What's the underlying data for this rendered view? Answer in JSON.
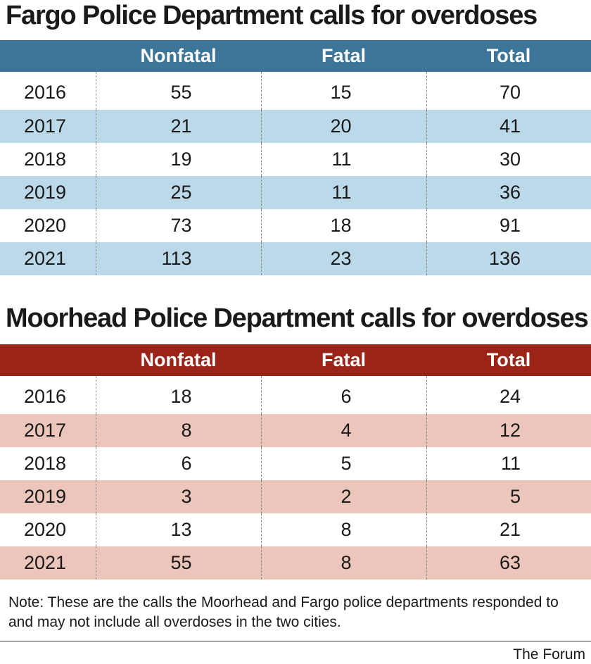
{
  "chart_data": [
    {
      "type": "table",
      "title": "Fargo Police Department calls for overdoses",
      "columns": [
        "",
        "Nonfatal",
        "Fatal",
        "Total"
      ],
      "rows": [
        [
          "2016",
          "55",
          "15",
          "70"
        ],
        [
          "2017",
          "21",
          "20",
          "41"
        ],
        [
          "2018",
          "19",
          "11",
          "30"
        ],
        [
          "2019",
          "25",
          "11",
          "36"
        ],
        [
          "2020",
          "73",
          "18",
          "91"
        ],
        [
          "2021",
          "113",
          "23",
          "136"
        ]
      ],
      "header_color": "#3c7598",
      "stripe_color": "#bcd9ea"
    },
    {
      "type": "table",
      "title": "Moorhead Police Department calls for overdoses",
      "columns": [
        "",
        "Nonfatal",
        "Fatal",
        "Total"
      ],
      "rows": [
        [
          "2016",
          "18",
          "6",
          "24"
        ],
        [
          "2017",
          "8",
          "4",
          "12"
        ],
        [
          "2018",
          "6",
          "5",
          "11"
        ],
        [
          "2019",
          "3",
          "2",
          "5"
        ],
        [
          "2020",
          "13",
          "8",
          "21"
        ],
        [
          "2021",
          "55",
          "8",
          "63"
        ]
      ],
      "header_color": "#9a2418",
      "stripe_color": "#ecc6ba"
    }
  ],
  "note": "Note: These are the calls the Moorhead and Fargo police departments responded to and may not include all overdoses in the two cities.",
  "credit": "The Forum"
}
